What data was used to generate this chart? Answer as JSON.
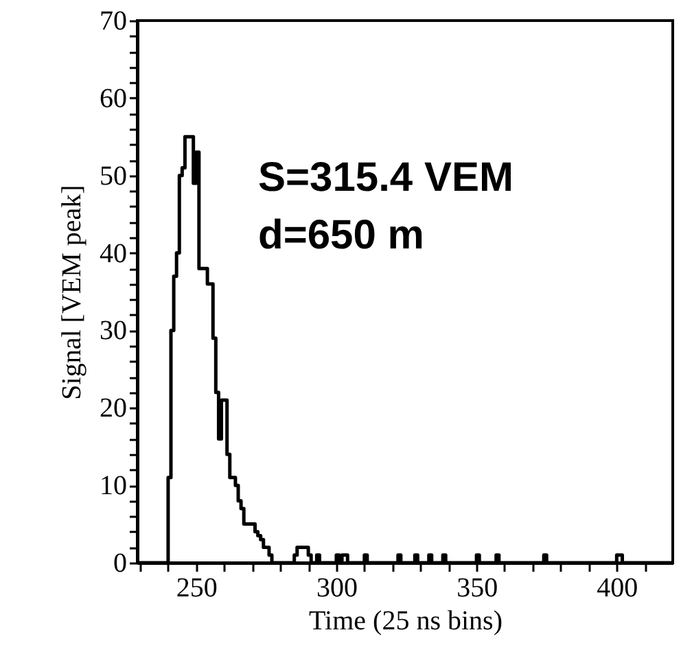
{
  "chart_data": {
    "type": "step",
    "xlabel": "Time  (25 ns bins)",
    "ylabel": "Signal [VEM peak]",
    "annotations": [
      "S=315.4 VEM",
      "d=650 m"
    ],
    "xlim": [
      229,
      420
    ],
    "ylim": [
      0,
      70
    ],
    "xticks": [
      {
        "value": 230,
        "label": null
      },
      {
        "value": 240,
        "label": null
      },
      250,
      {
        "value": 260,
        "label": null
      },
      {
        "value": 270,
        "label": null
      },
      {
        "value": 280,
        "label": null
      },
      {
        "value": 290,
        "label": null
      },
      300,
      {
        "value": 310,
        "label": null
      },
      {
        "value": 320,
        "label": null
      },
      {
        "value": 330,
        "label": null
      },
      {
        "value": 340,
        "label": null
      },
      350,
      {
        "value": 360,
        "label": null
      },
      {
        "value": 370,
        "label": null
      },
      {
        "value": 380,
        "label": null
      },
      {
        "value": 390,
        "label": null
      },
      400,
      {
        "value": 410,
        "label": null
      }
    ],
    "yticks": [
      0,
      {
        "value": 2,
        "label": null
      },
      {
        "value": 4,
        "label": null
      },
      {
        "value": 6,
        "label": null
      },
      {
        "value": 8,
        "label": null
      },
      10,
      {
        "value": 12,
        "label": null
      },
      {
        "value": 14,
        "label": null
      },
      {
        "value": 16,
        "label": null
      },
      {
        "value": 18,
        "label": null
      },
      20,
      {
        "value": 22,
        "label": null
      },
      {
        "value": 24,
        "label": null
      },
      {
        "value": 26,
        "label": null
      },
      {
        "value": 28,
        "label": null
      },
      30,
      {
        "value": 32,
        "label": null
      },
      {
        "value": 34,
        "label": null
      },
      {
        "value": 36,
        "label": null
      },
      {
        "value": 38,
        "label": null
      },
      40,
      {
        "value": 42,
        "label": null
      },
      {
        "value": 44,
        "label": null
      },
      {
        "value": 46,
        "label": null
      },
      {
        "value": 48,
        "label": null
      },
      50,
      {
        "value": 52,
        "label": null
      },
      {
        "value": 54,
        "label": null
      },
      {
        "value": 56,
        "label": null
      },
      {
        "value": 58,
        "label": null
      },
      60,
      {
        "value": 62,
        "label": null
      },
      {
        "value": 64,
        "label": null
      },
      {
        "value": 66,
        "label": null
      },
      {
        "value": 68,
        "label": null
      },
      70
    ],
    "grid": false,
    "marker": "none",
    "line_style": "solid",
    "series": [
      {
        "color": "#000000",
        "x": [
          229,
          239,
          240,
          241,
          242,
          243,
          244,
          245,
          246,
          249,
          250,
          251,
          254,
          256,
          257,
          258,
          259,
          261,
          262,
          264,
          265,
          266,
          267,
          271,
          272,
          273,
          274,
          276,
          277,
          285,
          286,
          290,
          291,
          293,
          294,
          300,
          301,
          302,
          304,
          310,
          311,
          322,
          323,
          328,
          329,
          333,
          334,
          338,
          339,
          350,
          351,
          357,
          358,
          374,
          375,
          400,
          402,
          420
        ],
        "values": [
          0,
          0,
          11,
          30,
          37,
          40,
          50,
          51,
          55,
          49,
          53,
          38,
          36,
          29,
          22,
          16,
          21,
          14,
          11,
          10,
          8,
          7,
          5,
          4,
          3.5,
          3,
          2,
          1,
          0,
          1,
          2,
          1,
          0,
          1,
          0,
          1,
          0,
          1,
          0,
          1,
          0,
          1,
          0,
          1,
          0,
          1,
          0,
          1,
          0,
          1,
          0,
          1,
          0,
          1,
          0,
          1,
          0,
          0
        ]
      }
    ]
  }
}
